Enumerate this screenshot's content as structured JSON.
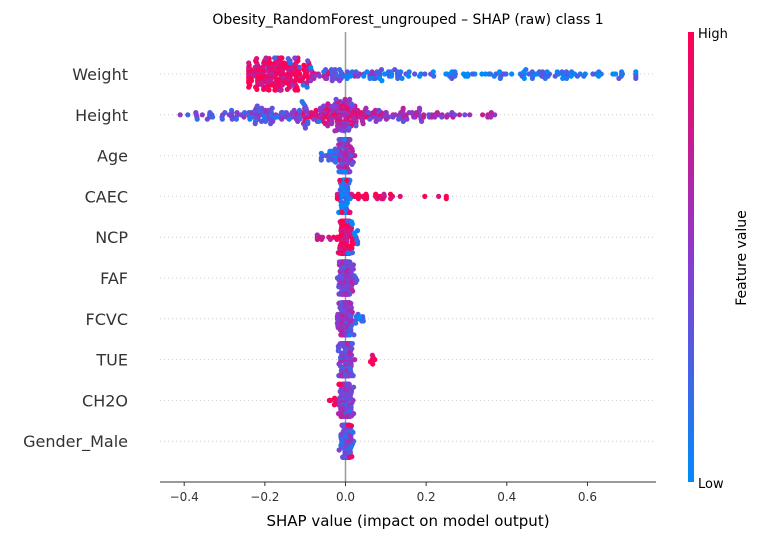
{
  "chart_data": {
    "type": "scatter",
    "title": "Obesity_RandomForest_ungrouped – SHAP (raw) class 1",
    "xlabel": "SHAP value (impact on model output)",
    "xlim": [
      -0.46,
      0.77
    ],
    "xticks": [
      -0.4,
      -0.2,
      0.0,
      0.2,
      0.4,
      0.6
    ],
    "xtick_labels": [
      "−0.4",
      "−0.2",
      "0.0",
      "0.2",
      "0.4",
      "0.6"
    ],
    "features": [
      "Weight",
      "Height",
      "Age",
      "CAEC",
      "NCP",
      "FAF",
      "FCVC",
      "TUE",
      "CH2O",
      "Gender_Male"
    ],
    "colorbar": {
      "label": "Feature value",
      "high": "High",
      "low": "Low"
    },
    "colors": {
      "low": "#008bfb",
      "high": "#ff0052",
      "mid": "#8a3ad1",
      "zero_line": "#999999",
      "grid": "#cccccc"
    },
    "distributions": [
      {
        "feature": "Weight",
        "clusters": [
          {
            "center": -0.16,
            "spread": 0.05,
            "count": 220,
            "color_mean": 0.9
          },
          {
            "center": 0.02,
            "spread": 0.08,
            "count": 60,
            "color_mean": 0.35
          },
          {
            "center": 0.25,
            "spread": 0.14,
            "count": 70,
            "color_mean": 0.15
          },
          {
            "center": 0.55,
            "spread": 0.1,
            "count": 50,
            "color_mean": 0.1
          }
        ],
        "min": -0.24,
        "max": 0.72
      },
      {
        "feature": "Height",
        "clusters": [
          {
            "center": -0.02,
            "spread": 0.05,
            "count": 150,
            "color_mean": 0.7
          },
          {
            "center": -0.2,
            "spread": 0.09,
            "count": 110,
            "color_mean": 0.35
          },
          {
            "center": 0.15,
            "spread": 0.1,
            "count": 80,
            "color_mean": 0.55
          },
          {
            "center": 0.36,
            "spread": 0.01,
            "count": 4,
            "color_mean": 0.6
          }
        ],
        "min": -0.41,
        "max": 0.37
      },
      {
        "feature": "Age",
        "clusters": [
          {
            "center": 0.0,
            "spread": 0.008,
            "count": 160,
            "color_mean": 0.55
          },
          {
            "center": -0.03,
            "spread": 0.02,
            "count": 30,
            "color_mean": 0.15
          }
        ],
        "min": -0.06,
        "max": 0.06
      },
      {
        "feature": "CAEC",
        "clusters": [
          {
            "center": 0.0,
            "spread": 0.006,
            "count": 170,
            "color_mean": 0.1
          },
          {
            "center": 0.05,
            "spread": 0.04,
            "count": 30,
            "color_mean": 0.95
          },
          {
            "center": 0.22,
            "spread": 0.03,
            "count": 4,
            "color_mean": 0.95
          }
        ],
        "min": -0.02,
        "max": 0.25
      },
      {
        "feature": "NCP",
        "clusters": [
          {
            "center": 0.0,
            "spread": 0.008,
            "count": 160,
            "color_mean": 0.9
          },
          {
            "center": -0.04,
            "spread": 0.02,
            "count": 10,
            "color_mean": 0.9
          },
          {
            "center": 0.02,
            "spread": 0.01,
            "count": 12,
            "color_mean": 0.1
          }
        ],
        "min": -0.07,
        "max": 0.03
      },
      {
        "feature": "FAF",
        "clusters": [
          {
            "center": 0.0,
            "spread": 0.01,
            "count": 180,
            "color_mean": 0.5
          }
        ],
        "min": -0.04,
        "max": 0.03
      },
      {
        "feature": "FCVC",
        "clusters": [
          {
            "center": 0.0,
            "spread": 0.008,
            "count": 170,
            "color_mean": 0.5
          },
          {
            "center": 0.03,
            "spread": 0.012,
            "count": 10,
            "color_mean": 0.15
          }
        ],
        "min": -0.02,
        "max": 0.05
      },
      {
        "feature": "TUE",
        "clusters": [
          {
            "center": 0.0,
            "spread": 0.008,
            "count": 170,
            "color_mean": 0.45
          },
          {
            "center": 0.065,
            "spread": 0.006,
            "count": 6,
            "color_mean": 0.95
          }
        ],
        "min": -0.03,
        "max": 0.075
      },
      {
        "feature": "CH2O",
        "clusters": [
          {
            "center": 0.0,
            "spread": 0.008,
            "count": 170,
            "color_mean": 0.45
          },
          {
            "center": -0.02,
            "spread": 0.01,
            "count": 10,
            "color_mean": 0.9
          }
        ],
        "min": -0.04,
        "max": 0.02
      },
      {
        "feature": "Gender_Male",
        "clusters": [
          {
            "center": 0.0,
            "spread": 0.007,
            "count": 170,
            "color_mean": 0.35
          },
          {
            "center": 0.01,
            "spread": 0.005,
            "count": 6,
            "color_mean": 0.95
          }
        ],
        "min": -0.03,
        "max": 0.02
      }
    ]
  }
}
